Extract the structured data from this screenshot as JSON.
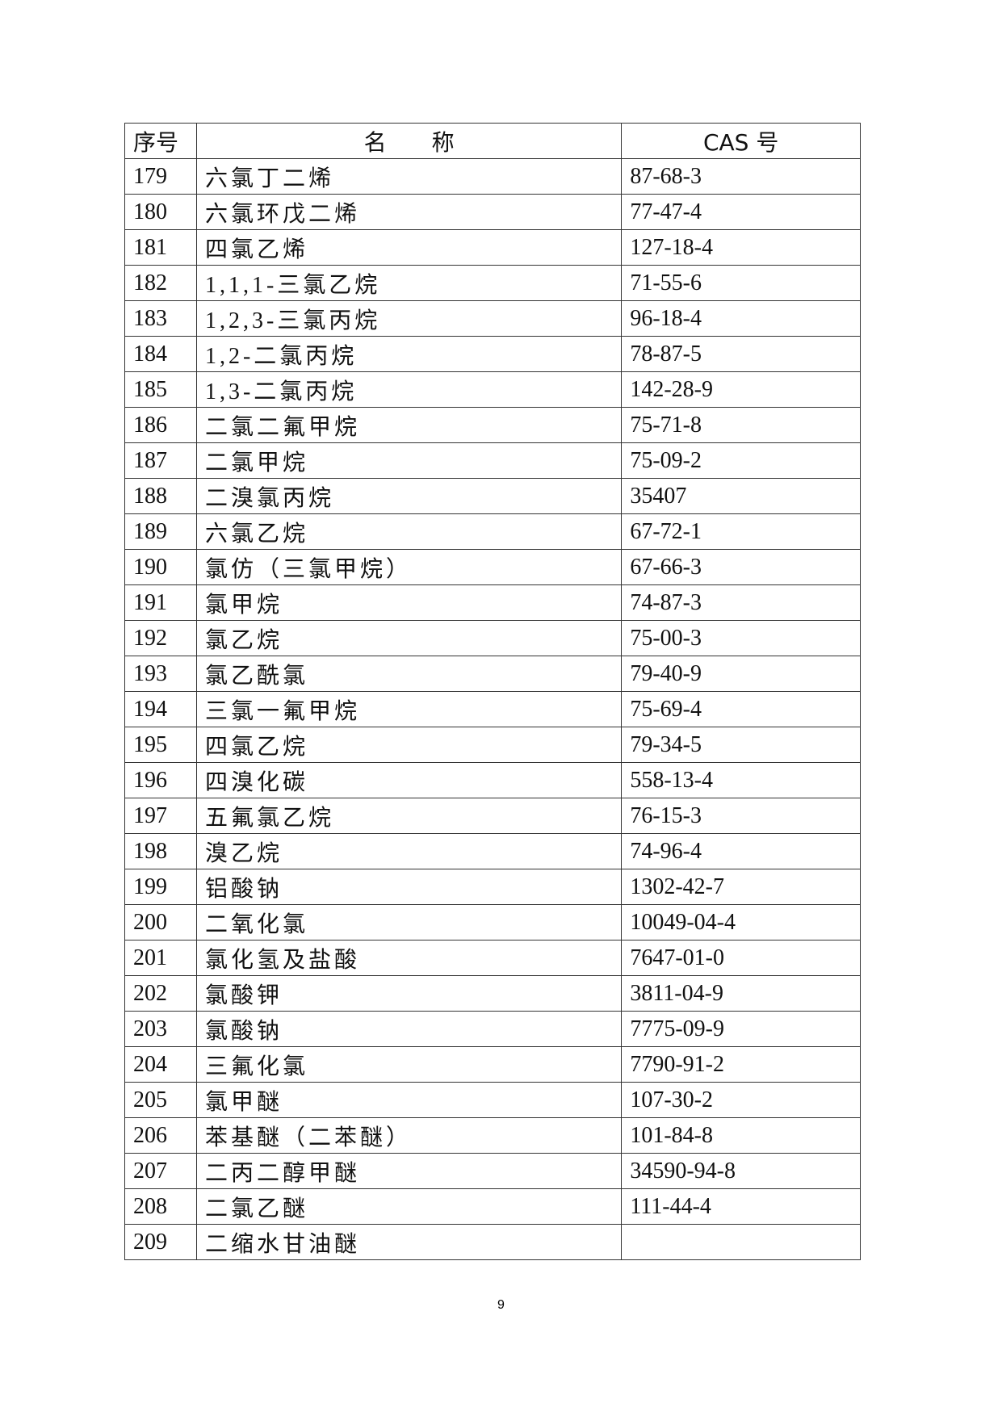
{
  "headers": {
    "no": "序号",
    "name": "名　　称",
    "cas": "CAS 号"
  },
  "rows": [
    {
      "no": "179",
      "name": "六氯丁二烯",
      "cas": "87-68-3"
    },
    {
      "no": "180",
      "name": "六氯环戊二烯",
      "cas": "77-47-4"
    },
    {
      "no": "181",
      "name": "四氯乙烯",
      "cas": "127-18-4"
    },
    {
      "no": "182",
      "name": "1,1,1-三氯乙烷",
      "cas": "71-55-6"
    },
    {
      "no": "183",
      "name": "1,2,3-三氯丙烷",
      "cas": "96-18-4"
    },
    {
      "no": "184",
      "name": "1,2-二氯丙烷",
      "cas": "78-87-5"
    },
    {
      "no": "185",
      "name": "1,3-二氯丙烷",
      "cas": "142-28-9"
    },
    {
      "no": "186",
      "name": "二氯二氟甲烷",
      "cas": "75-71-8"
    },
    {
      "no": "187",
      "name": "二氯甲烷",
      "cas": "75-09-2"
    },
    {
      "no": "188",
      "name": "二溴氯丙烷",
      "cas": "35407"
    },
    {
      "no": "189",
      "name": "六氯乙烷",
      "cas": "67-72-1"
    },
    {
      "no": "190",
      "name": "氯仿（三氯甲烷）",
      "cas": "67-66-3"
    },
    {
      "no": "191",
      "name": "氯甲烷",
      "cas": "74-87-3"
    },
    {
      "no": "192",
      "name": "氯乙烷",
      "cas": "75-00-3"
    },
    {
      "no": "193",
      "name": "氯乙酰氯",
      "cas": "79-40-9"
    },
    {
      "no": "194",
      "name": "三氯一氟甲烷",
      "cas": "75-69-4"
    },
    {
      "no": "195",
      "name": "四氯乙烷",
      "cas": "79-34-5"
    },
    {
      "no": "196",
      "name": "四溴化碳",
      "cas": "558-13-4"
    },
    {
      "no": "197",
      "name": "五氟氯乙烷",
      "cas": "76-15-3"
    },
    {
      "no": "198",
      "name": "溴乙烷",
      "cas": "74-96-4"
    },
    {
      "no": "199",
      "name": "铝酸钠",
      "cas": "1302-42-7"
    },
    {
      "no": "200",
      "name": "二氧化氯",
      "cas": "10049-04-4"
    },
    {
      "no": "201",
      "name": "氯化氢及盐酸",
      "cas": "7647-01-0"
    },
    {
      "no": "202",
      "name": "氯酸钾",
      "cas": "3811-04-9"
    },
    {
      "no": "203",
      "name": "氯酸钠",
      "cas": "7775-09-9"
    },
    {
      "no": "204",
      "name": "三氟化氯",
      "cas": "7790-91-2"
    },
    {
      "no": "205",
      "name": "氯甲醚",
      "cas": "107-30-2"
    },
    {
      "no": "206",
      "name": "苯基醚（二苯醚）",
      "cas": "101-84-8"
    },
    {
      "no": "207",
      "name": "二丙二醇甲醚",
      "cas": "34590-94-8"
    },
    {
      "no": "208",
      "name": "二氯乙醚",
      "cas": "111-44-4"
    },
    {
      "no": "209",
      "name": "二缩水甘油醚",
      "cas": ""
    }
  ],
  "page_number": "9"
}
